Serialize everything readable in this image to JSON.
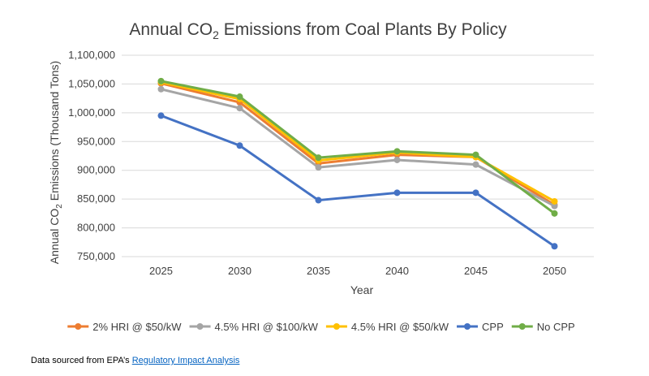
{
  "chart_data": {
    "type": "line",
    "title_prefix": "Annual CO",
    "title_sub": "2",
    "title_suffix": " Emissions from Coal Plants By Policy",
    "xlabel": "Year",
    "ylabel_prefix": "Annual CO",
    "ylabel_sub": "2",
    "ylabel_suffix": " Emissions (Thousand Tons)",
    "categories": [
      "2025",
      "2030",
      "2035",
      "2040",
      "2045",
      "2050"
    ],
    "ylim": [
      750000,
      1100000
    ],
    "yticks": [
      "750,000",
      "800,000",
      "850,000",
      "900,000",
      "950,000",
      "1,000,000",
      "1,050,000",
      "1,100,000"
    ],
    "grid": true,
    "legend_position": "bottom",
    "series": [
      {
        "name": "2% HRI @ $50/kW",
        "color": "#ed7d31",
        "values": [
          1051000,
          1018000,
          912000,
          927000,
          923000,
          840000
        ]
      },
      {
        "name": "4.5% HRI @ $100/kW",
        "color": "#a5a5a5",
        "values": [
          1041000,
          1008000,
          905000,
          918000,
          910000,
          838000
        ]
      },
      {
        "name": "4.5% HRI @ $50/kW",
        "color": "#ffc000",
        "values": [
          1053000,
          1024000,
          917000,
          931000,
          923000,
          846000
        ]
      },
      {
        "name": "CPP",
        "color": "#4472c4",
        "values": [
          995000,
          943000,
          848000,
          861000,
          861000,
          768000
        ]
      },
      {
        "name": "No CPP",
        "color": "#70ad47",
        "values": [
          1055000,
          1028000,
          922000,
          933000,
          927000,
          825000
        ]
      }
    ]
  },
  "footnote": {
    "text": "Data sourced from EPA’s ",
    "link_text": "Regulatory Impact Analysis"
  }
}
